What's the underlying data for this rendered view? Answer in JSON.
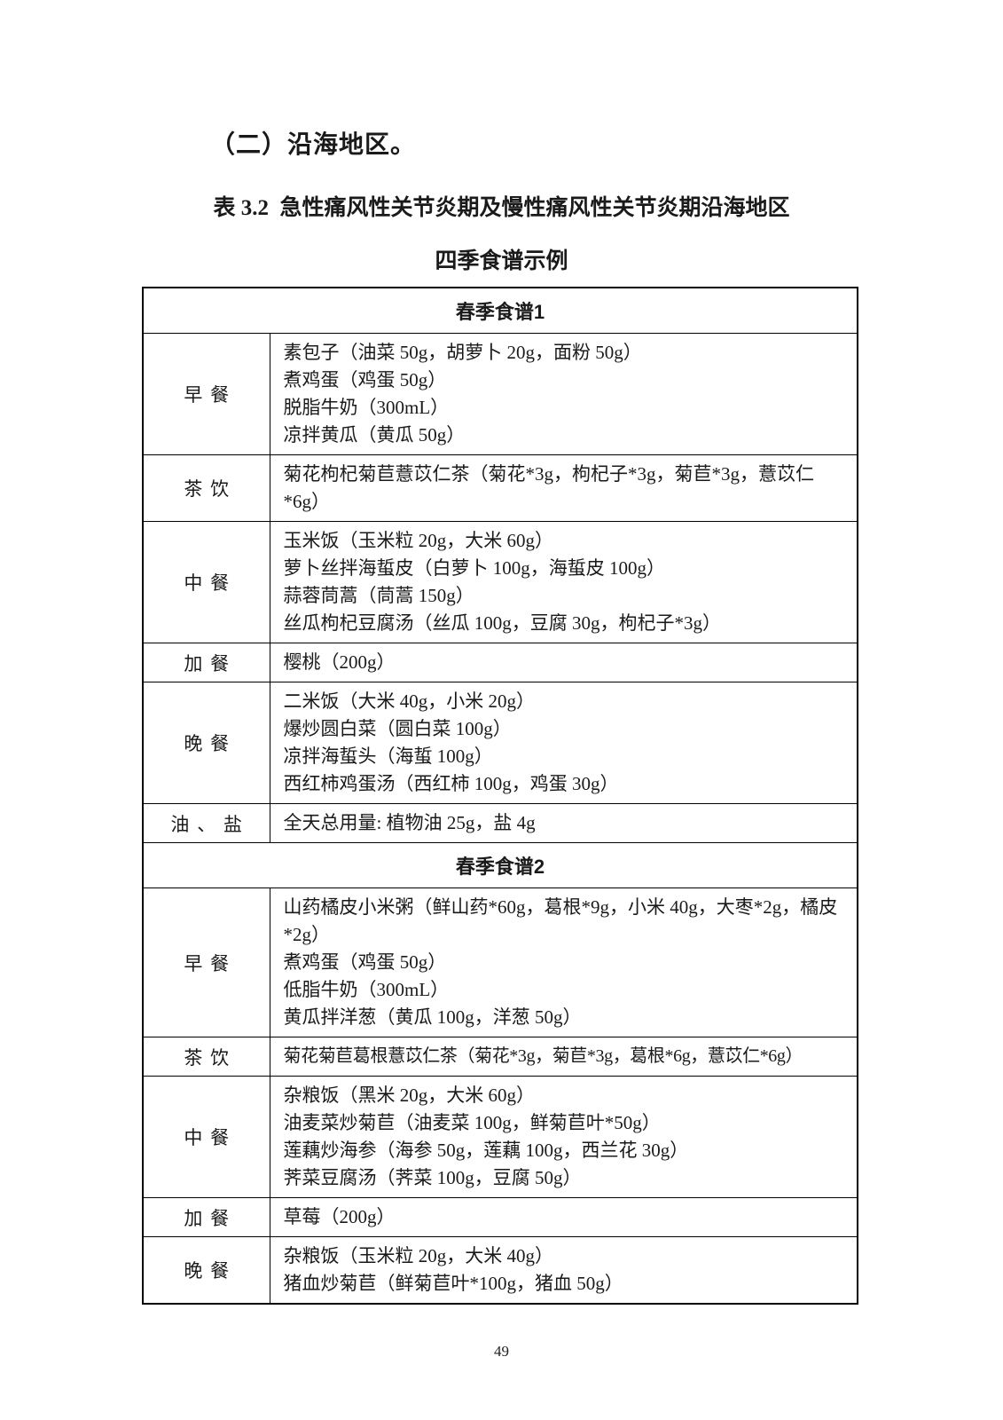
{
  "page": {
    "section_heading": "（二）沿海地区。",
    "table_caption_line1": "表 3.2  急性痛风性关节炎期及慢性痛风性关节炎期沿海地区",
    "table_caption_line2": "四季食谱示例",
    "page_number": "49"
  },
  "table": {
    "sections": [
      {
        "title": "春季食谱1",
        "rows": [
          {
            "label": "早餐",
            "items": [
              "素包子（油菜 50g，胡萝卜 20g，面粉 50g）",
              "煮鸡蛋（鸡蛋 50g）",
              "脱脂牛奶（300mL）",
              "凉拌黄瓜（黄瓜 50g）"
            ]
          },
          {
            "label": "茶饮",
            "items": [
              "菊花枸杞菊苣薏苡仁茶（菊花*3g，枸杞子*3g，菊苣*3g，薏苡仁*6g）"
            ]
          },
          {
            "label": "中餐",
            "items": [
              "玉米饭（玉米粒 20g，大米 60g）",
              "萝卜丝拌海蜇皮（白萝卜 100g，海蜇皮 100g）",
              "蒜蓉茼蒿（茼蒿 150g）",
              "丝瓜枸杞豆腐汤（丝瓜 100g，豆腐 30g，枸杞子*3g）"
            ]
          },
          {
            "label": "加餐",
            "items": [
              "樱桃（200g）"
            ]
          },
          {
            "label": "晚餐",
            "items": [
              "二米饭（大米 40g，小米 20g）",
              "爆炒圆白菜（圆白菜 100g）",
              "凉拌海蜇头（海蜇 100g）",
              "西红柿鸡蛋汤（西红柿 100g，鸡蛋 30g）"
            ]
          },
          {
            "label": "油、盐",
            "items": [
              "全天总用量: 植物油 25g，盐 4g"
            ]
          }
        ]
      },
      {
        "title": "春季食谱2",
        "rows": [
          {
            "label": "早餐",
            "items": [
              "山药橘皮小米粥（鲜山药*60g，葛根*9g，小米 40g，大枣*2g，橘皮*2g）",
              "煮鸡蛋（鸡蛋 50g）",
              "低脂牛奶（300mL）",
              "黄瓜拌洋葱（黄瓜 100g，洋葱 50g）"
            ]
          },
          {
            "label": "茶饮",
            "items": [
              "菊花菊苣葛根薏苡仁茶（菊花*3g，菊苣*3g，葛根*6g，薏苡仁*6g）"
            ]
          },
          {
            "label": "中餐",
            "items": [
              "杂粮饭（黑米 20g，大米 60g）",
              "油麦菜炒菊苣（油麦菜 100g，鲜菊苣叶*50g）",
              "莲藕炒海参（海参 50g，莲藕 100g，西兰花 30g）",
              "荠菜豆腐汤（荠菜 100g，豆腐 50g）"
            ]
          },
          {
            "label": "加餐",
            "items": [
              "草莓（200g）"
            ]
          },
          {
            "label": "晚餐",
            "items": [
              "杂粮饭（玉米粒 20g，大米 40g）",
              "猪血炒菊苣（鲜菊苣叶*100g，猪血 50g）"
            ]
          }
        ]
      }
    ]
  }
}
